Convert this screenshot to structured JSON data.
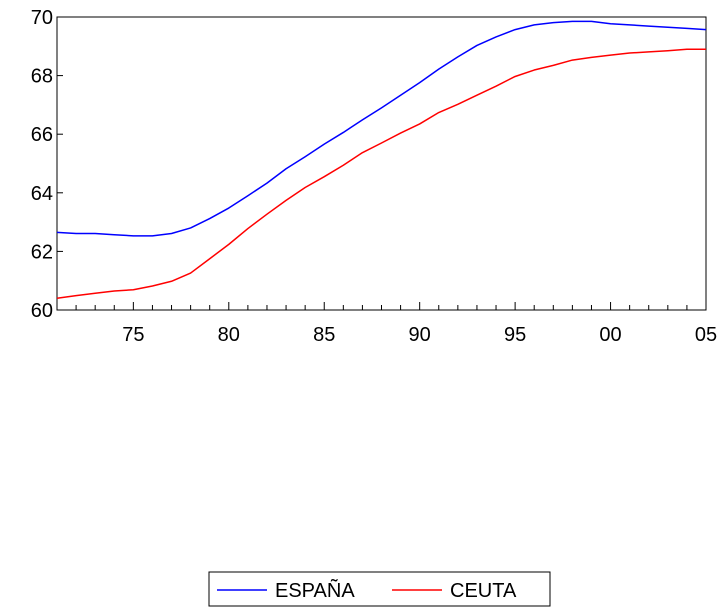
{
  "chart_data": {
    "type": "line",
    "title": "",
    "xlabel": "",
    "ylabel": "",
    "x": [
      1971,
      1972,
      1973,
      1974,
      1975,
      1976,
      1977,
      1978,
      1979,
      1980,
      1981,
      1982,
      1983,
      1984,
      1985,
      1986,
      1987,
      1988,
      1989,
      1990,
      1991,
      1992,
      1993,
      1994,
      1995,
      1996,
      1997,
      1998,
      1999,
      2000,
      2001,
      2002,
      2003,
      2004,
      2005
    ],
    "xlim": [
      1971,
      2005
    ],
    "ylim": [
      60,
      70
    ],
    "x_ticks": [
      {
        "value": 1975,
        "label": "75"
      },
      {
        "value": 1980,
        "label": "80"
      },
      {
        "value": 1985,
        "label": "85"
      },
      {
        "value": 1990,
        "label": "90"
      },
      {
        "value": 1995,
        "label": "95"
      },
      {
        "value": 2000,
        "label": "00"
      },
      {
        "value": 2005,
        "label": "05"
      }
    ],
    "y_ticks": [
      {
        "value": 60,
        "label": "60"
      },
      {
        "value": 62,
        "label": "62"
      },
      {
        "value": 64,
        "label": "64"
      },
      {
        "value": 66,
        "label": "66"
      },
      {
        "value": 68,
        "label": "68"
      },
      {
        "value": 70,
        "label": "70"
      }
    ],
    "grid": false,
    "legend_position": "bottom-center",
    "series": [
      {
        "name": "ESPAÑA",
        "color": "#0000ff",
        "values": [
          62.65,
          62.61,
          62.61,
          62.57,
          62.53,
          62.53,
          62.61,
          62.8,
          63.12,
          63.48,
          63.9,
          64.33,
          64.82,
          65.23,
          65.66,
          66.06,
          66.49,
          66.9,
          67.33,
          67.76,
          68.22,
          68.64,
          69.03,
          69.32,
          69.57,
          69.73,
          69.81,
          69.85,
          69.85,
          69.77,
          69.73,
          69.69,
          69.65,
          69.61,
          69.57
        ]
      },
      {
        "name": "CEUTA",
        "color": "#ff0000",
        "values": [
          60.4,
          60.49,
          60.57,
          60.65,
          60.69,
          60.82,
          60.98,
          61.26,
          61.75,
          62.24,
          62.78,
          63.27,
          63.74,
          64.18,
          64.55,
          64.94,
          65.37,
          65.7,
          66.04,
          66.35,
          66.74,
          67.02,
          67.33,
          67.64,
          67.97,
          68.19,
          68.35,
          68.53,
          68.62,
          68.7,
          68.77,
          68.81,
          68.85,
          68.9,
          68.9
        ]
      }
    ]
  }
}
